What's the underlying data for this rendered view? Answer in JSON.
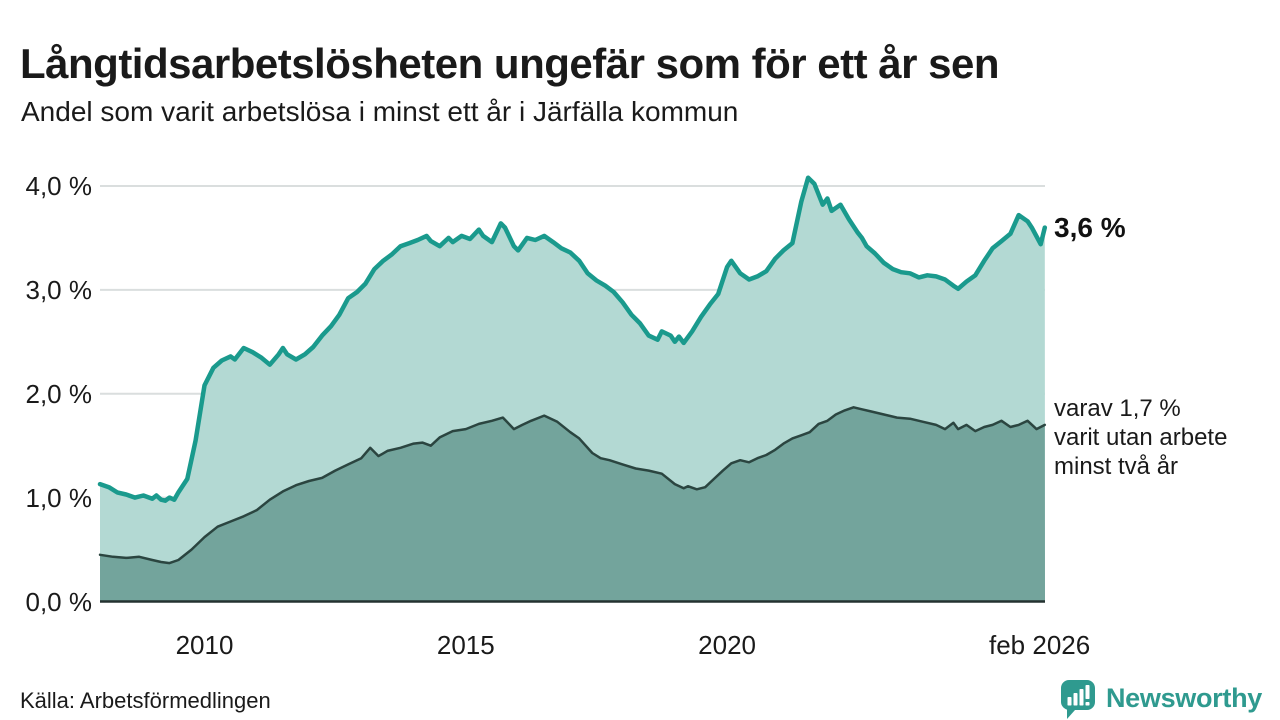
{
  "colors": {
    "accent_teal": "#1a9a8d",
    "fill_light": "#b3d9d3",
    "fill_dark": "#73a49c",
    "line_dark": "#2b4540",
    "grid": "#dadede",
    "axis": "#243230",
    "text": "#1a1a1a",
    "brand_teal": "#2f9a8f"
  },
  "footer": {
    "source": "Källa: Arbetsförmedlingen",
    "brand": "Newsworthy",
    "brand_icon": "newsworthy-speech-bubble-barchart-icon"
  },
  "chart_data": {
    "type": "area",
    "title": "Långtidsarbetslösheten ungefär som för ett år sen",
    "subtitle": "Andel som varit arbetslösa i minst ett år i Järfälla kommun",
    "unit": "%",
    "grid": true,
    "legend_position": "none",
    "x_range": [
      2008.0,
      2026.083
    ],
    "y_range": [
      0,
      4.0
    ],
    "yticks": [
      {
        "label": "4,0 %",
        "value": 4.0
      },
      {
        "label": "3,0 %",
        "value": 3.0
      },
      {
        "label": "2,0 %",
        "value": 2.0
      },
      {
        "label": "1,0 %",
        "value": 1.0
      },
      {
        "label": "0,0 %",
        "value": 0.0
      }
    ],
    "xticks": [
      {
        "label": "2010",
        "value": 2010
      },
      {
        "label": "2015",
        "value": 2015
      },
      {
        "label": "2020",
        "value": 2020
      },
      {
        "label": "feb 2026",
        "value": 2025.98
      }
    ],
    "annotations": [
      {
        "text": "3,6 %",
        "attach_value": 3.6,
        "style": "bold-end-label"
      },
      {
        "text": "varav 1,7 %\nvarit utan arbete\nminst två år",
        "attach_value": 1.7,
        "style": "sub-label"
      }
    ],
    "series": [
      {
        "name": "Andel arbetslösa minst ett år",
        "end_label": "3,6 %",
        "line_color": "#1a9a8d",
        "fill_color": "#b3d9d3",
        "line_width": 4.5,
        "points": [
          [
            2008.0,
            1.13
          ],
          [
            2008.17,
            1.1
          ],
          [
            2008.33,
            1.05
          ],
          [
            2008.5,
            1.03
          ],
          [
            2008.67,
            1.0
          ],
          [
            2008.83,
            1.02
          ],
          [
            2009.0,
            0.99
          ],
          [
            2009.08,
            1.02
          ],
          [
            2009.17,
            0.98
          ],
          [
            2009.25,
            0.97
          ],
          [
            2009.33,
            1.0
          ],
          [
            2009.42,
            0.98
          ],
          [
            2009.5,
            1.05
          ],
          [
            2009.67,
            1.18
          ],
          [
            2009.83,
            1.55
          ],
          [
            2010.0,
            2.08
          ],
          [
            2010.17,
            2.25
          ],
          [
            2010.33,
            2.32
          ],
          [
            2010.5,
            2.36
          ],
          [
            2010.58,
            2.33
          ],
          [
            2010.75,
            2.44
          ],
          [
            2010.92,
            2.4
          ],
          [
            2011.08,
            2.35
          ],
          [
            2011.25,
            2.28
          ],
          [
            2011.42,
            2.38
          ],
          [
            2011.5,
            2.44
          ],
          [
            2011.58,
            2.38
          ],
          [
            2011.75,
            2.33
          ],
          [
            2011.92,
            2.38
          ],
          [
            2012.08,
            2.45
          ],
          [
            2012.25,
            2.56
          ],
          [
            2012.42,
            2.65
          ],
          [
            2012.58,
            2.76
          ],
          [
            2012.75,
            2.92
          ],
          [
            2012.92,
            2.98
          ],
          [
            2013.08,
            3.06
          ],
          [
            2013.25,
            3.2
          ],
          [
            2013.42,
            3.28
          ],
          [
            2013.58,
            3.34
          ],
          [
            2013.75,
            3.42
          ],
          [
            2013.92,
            3.45
          ],
          [
            2014.08,
            3.48
          ],
          [
            2014.25,
            3.52
          ],
          [
            2014.33,
            3.47
          ],
          [
            2014.5,
            3.42
          ],
          [
            2014.67,
            3.5
          ],
          [
            2014.75,
            3.46
          ],
          [
            2014.92,
            3.52
          ],
          [
            2015.08,
            3.49
          ],
          [
            2015.25,
            3.58
          ],
          [
            2015.33,
            3.52
          ],
          [
            2015.5,
            3.46
          ],
          [
            2015.67,
            3.64
          ],
          [
            2015.75,
            3.6
          ],
          [
            2015.92,
            3.42
          ],
          [
            2016.0,
            3.38
          ],
          [
            2016.17,
            3.5
          ],
          [
            2016.33,
            3.48
          ],
          [
            2016.5,
            3.52
          ],
          [
            2016.67,
            3.46
          ],
          [
            2016.83,
            3.4
          ],
          [
            2017.0,
            3.36
          ],
          [
            2017.17,
            3.28
          ],
          [
            2017.33,
            3.16
          ],
          [
            2017.5,
            3.09
          ],
          [
            2017.67,
            3.04
          ],
          [
            2017.83,
            2.98
          ],
          [
            2018.0,
            2.88
          ],
          [
            2018.17,
            2.76
          ],
          [
            2018.33,
            2.68
          ],
          [
            2018.5,
            2.56
          ],
          [
            2018.67,
            2.52
          ],
          [
            2018.75,
            2.6
          ],
          [
            2018.92,
            2.56
          ],
          [
            2019.0,
            2.5
          ],
          [
            2019.08,
            2.55
          ],
          [
            2019.17,
            2.49
          ],
          [
            2019.33,
            2.6
          ],
          [
            2019.5,
            2.74
          ],
          [
            2019.67,
            2.86
          ],
          [
            2019.83,
            2.96
          ],
          [
            2020.0,
            3.22
          ],
          [
            2020.08,
            3.28
          ],
          [
            2020.25,
            3.16
          ],
          [
            2020.42,
            3.1
          ],
          [
            2020.58,
            3.13
          ],
          [
            2020.75,
            3.18
          ],
          [
            2020.92,
            3.3
          ],
          [
            2021.08,
            3.38
          ],
          [
            2021.25,
            3.45
          ],
          [
            2021.42,
            3.85
          ],
          [
            2021.55,
            4.08
          ],
          [
            2021.67,
            4.02
          ],
          [
            2021.83,
            3.82
          ],
          [
            2021.92,
            3.88
          ],
          [
            2022.0,
            3.76
          ],
          [
            2022.17,
            3.82
          ],
          [
            2022.33,
            3.68
          ],
          [
            2022.5,
            3.55
          ],
          [
            2022.58,
            3.5
          ],
          [
            2022.67,
            3.42
          ],
          [
            2022.83,
            3.35
          ],
          [
            2023.0,
            3.26
          ],
          [
            2023.17,
            3.2
          ],
          [
            2023.33,
            3.17
          ],
          [
            2023.5,
            3.16
          ],
          [
            2023.67,
            3.12
          ],
          [
            2023.83,
            3.14
          ],
          [
            2024.0,
            3.13
          ],
          [
            2024.17,
            3.1
          ],
          [
            2024.33,
            3.04
          ],
          [
            2024.42,
            3.01
          ],
          [
            2024.58,
            3.08
          ],
          [
            2024.75,
            3.14
          ],
          [
            2024.92,
            3.28
          ],
          [
            2025.08,
            3.4
          ],
          [
            2025.25,
            3.47
          ],
          [
            2025.42,
            3.54
          ],
          [
            2025.58,
            3.72
          ],
          [
            2025.75,
            3.66
          ],
          [
            2025.83,
            3.6
          ],
          [
            2026.0,
            3.44
          ],
          [
            2026.08,
            3.6
          ]
        ]
      },
      {
        "name": "Andel arbetslösa minst två år",
        "end_label": "varav 1,7 % varit utan arbete minst två år",
        "line_color": "#2b4540",
        "fill_color": "#73a49c",
        "line_width": 2.5,
        "points": [
          [
            2008.0,
            0.45
          ],
          [
            2008.25,
            0.43
          ],
          [
            2008.5,
            0.42
          ],
          [
            2008.75,
            0.43
          ],
          [
            2009.0,
            0.4
          ],
          [
            2009.17,
            0.38
          ],
          [
            2009.33,
            0.37
          ],
          [
            2009.5,
            0.4
          ],
          [
            2009.75,
            0.5
          ],
          [
            2010.0,
            0.62
          ],
          [
            2010.25,
            0.72
          ],
          [
            2010.5,
            0.77
          ],
          [
            2010.75,
            0.82
          ],
          [
            2011.0,
            0.88
          ],
          [
            2011.25,
            0.98
          ],
          [
            2011.5,
            1.06
          ],
          [
            2011.75,
            1.12
          ],
          [
            2012.0,
            1.16
          ],
          [
            2012.25,
            1.19
          ],
          [
            2012.5,
            1.26
          ],
          [
            2012.75,
            1.32
          ],
          [
            2013.0,
            1.38
          ],
          [
            2013.17,
            1.48
          ],
          [
            2013.33,
            1.4
          ],
          [
            2013.5,
            1.45
          ],
          [
            2013.75,
            1.48
          ],
          [
            2014.0,
            1.52
          ],
          [
            2014.17,
            1.53
          ],
          [
            2014.33,
            1.5
          ],
          [
            2014.5,
            1.58
          ],
          [
            2014.75,
            1.64
          ],
          [
            2015.0,
            1.66
          ],
          [
            2015.25,
            1.71
          ],
          [
            2015.5,
            1.74
          ],
          [
            2015.71,
            1.77
          ],
          [
            2015.92,
            1.66
          ],
          [
            2016.08,
            1.7
          ],
          [
            2016.25,
            1.74
          ],
          [
            2016.5,
            1.79
          ],
          [
            2016.75,
            1.73
          ],
          [
            2017.0,
            1.63
          ],
          [
            2017.17,
            1.57
          ],
          [
            2017.42,
            1.43
          ],
          [
            2017.58,
            1.38
          ],
          [
            2017.75,
            1.36
          ],
          [
            2018.0,
            1.32
          ],
          [
            2018.25,
            1.28
          ],
          [
            2018.5,
            1.26
          ],
          [
            2018.75,
            1.23
          ],
          [
            2019.0,
            1.13
          ],
          [
            2019.17,
            1.09
          ],
          [
            2019.25,
            1.11
          ],
          [
            2019.42,
            1.08
          ],
          [
            2019.58,
            1.1
          ],
          [
            2019.75,
            1.18
          ],
          [
            2019.92,
            1.26
          ],
          [
            2020.08,
            1.33
          ],
          [
            2020.25,
            1.36
          ],
          [
            2020.42,
            1.34
          ],
          [
            2020.58,
            1.38
          ],
          [
            2020.75,
            1.41
          ],
          [
            2020.92,
            1.46
          ],
          [
            2021.08,
            1.52
          ],
          [
            2021.25,
            1.57
          ],
          [
            2021.42,
            1.6
          ],
          [
            2021.58,
            1.63
          ],
          [
            2021.75,
            1.71
          ],
          [
            2021.92,
            1.74
          ],
          [
            2022.08,
            1.8
          ],
          [
            2022.25,
            1.84
          ],
          [
            2022.42,
            1.87
          ],
          [
            2022.58,
            1.85
          ],
          [
            2022.75,
            1.83
          ],
          [
            2023.0,
            1.8
          ],
          [
            2023.25,
            1.77
          ],
          [
            2023.5,
            1.76
          ],
          [
            2023.75,
            1.73
          ],
          [
            2024.0,
            1.7
          ],
          [
            2024.17,
            1.66
          ],
          [
            2024.33,
            1.72
          ],
          [
            2024.42,
            1.66
          ],
          [
            2024.58,
            1.7
          ],
          [
            2024.75,
            1.64
          ],
          [
            2024.92,
            1.68
          ],
          [
            2025.08,
            1.7
          ],
          [
            2025.25,
            1.74
          ],
          [
            2025.42,
            1.68
          ],
          [
            2025.58,
            1.7
          ],
          [
            2025.75,
            1.74
          ],
          [
            2025.92,
            1.66
          ],
          [
            2026.08,
            1.7
          ]
        ]
      }
    ]
  }
}
